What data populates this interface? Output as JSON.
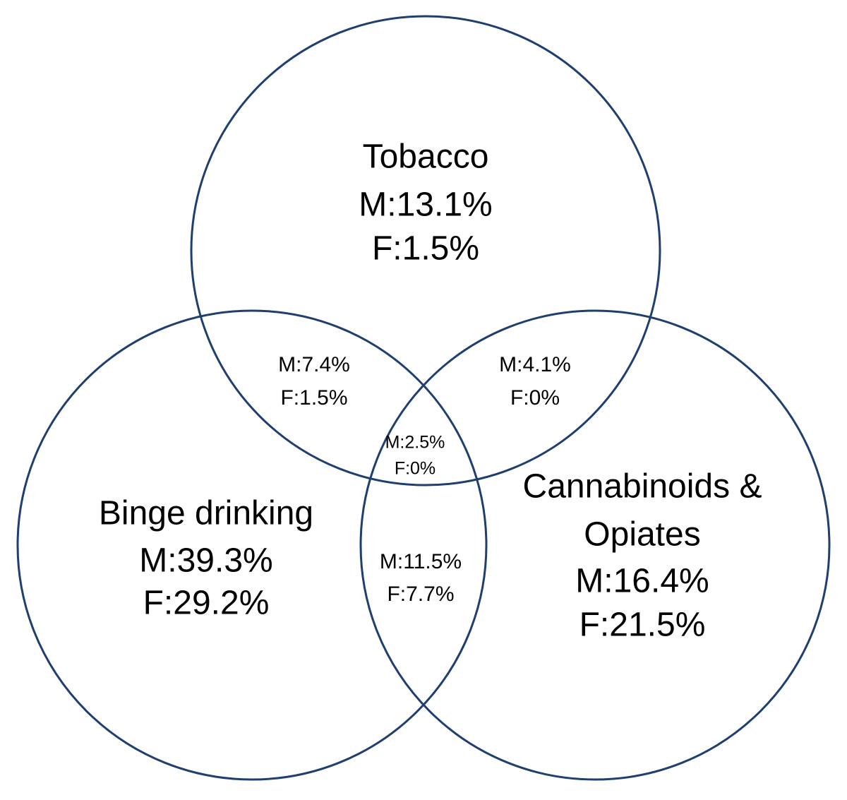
{
  "sets": [
    {
      "name_lines": [
        "Tobacco"
      ],
      "male": "M:13.1%",
      "female": "F:1.5%"
    },
    {
      "name_lines": [
        "Binge drinking"
      ],
      "male": "M:39.3%",
      "female": "F:29.2%"
    },
    {
      "name_lines": [
        "Cannabinoids &",
        "Opiates"
      ],
      "male": "M:16.4%",
      "female": "F:21.5%"
    }
  ],
  "regions": {
    "tobacco_binge": {
      "male": "M:7.4%",
      "female": "F:1.5%"
    },
    "tobacco_cannabinoids": {
      "male": "M:4.1%",
      "female": "F:0%"
    },
    "all_three": {
      "male": "M:2.5%",
      "female": "F:0%"
    },
    "binge_cannabinoids": {
      "male": "M:11.5%",
      "female": "F:7.7%"
    }
  }
}
